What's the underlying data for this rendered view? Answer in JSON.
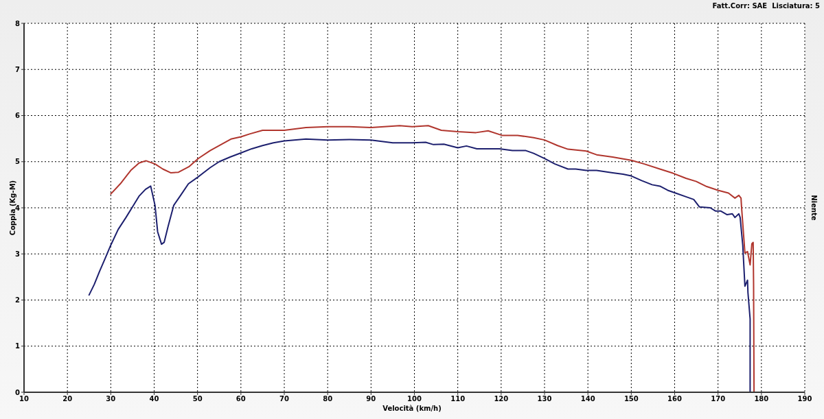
{
  "chart_data": {
    "type": "line",
    "xlabel": "Velocità (km/h)",
    "ylabel": "Coppia (Kg-M)",
    "y2label": "Niente",
    "annotations": [
      "Fatt.Corr: SAE  Lisciatura: 5"
    ],
    "xlim": [
      10,
      190
    ],
    "xticks": [
      10,
      20,
      30,
      40,
      50,
      60,
      70,
      80,
      90,
      100,
      110,
      120,
      130,
      140,
      150,
      160,
      170,
      180,
      190
    ],
    "ylim": [
      0,
      8
    ],
    "yticks": [
      0,
      1,
      2,
      3,
      4,
      5,
      6,
      7,
      8
    ],
    "grid": true,
    "line_style": "solid",
    "series": [
      {
        "color": "#1c1f6e",
        "x": [
          25.0,
          26.2,
          27.4,
          28.7,
          30,
          31.7,
          33.5,
          35,
          36.5,
          38,
          39.2,
          40.2,
          40.8,
          41.7,
          42.3,
          43.2,
          44.5,
          46.1,
          47.9,
          50,
          52.9,
          55,
          57.5,
          60,
          62.5,
          65,
          67.5,
          70,
          75,
          80,
          85,
          90,
          95,
          99.5,
          102.6,
          104.4,
          106.8,
          110,
          112,
          114.4,
          119.6,
          122.6,
          125.7,
          127.5,
          130,
          132.4,
          135.4,
          137.2,
          139.6,
          142,
          145.7,
          148.1,
          150,
          152.4,
          154.8,
          156.6,
          158.4,
          160.2,
          162.6,
          164.4,
          165.7,
          168.2,
          169.4,
          170.6,
          172.1,
          173.3,
          173.9,
          174.8,
          175.1,
          175.7,
          176.2,
          176.8,
          176.9,
          177.4,
          177.4
        ],
        "values": [
          2.11,
          2.34,
          2.62,
          2.9,
          3.19,
          3.53,
          3.79,
          4.02,
          4.25,
          4.4,
          4.47,
          4.05,
          3.48,
          3.21,
          3.25,
          3.59,
          4.05,
          4.27,
          4.52,
          4.66,
          4.87,
          5.0,
          5.1,
          5.19,
          5.28,
          5.35,
          5.41,
          5.45,
          5.49,
          5.47,
          5.48,
          5.47,
          5.41,
          5.41,
          5.42,
          5.37,
          5.38,
          5.3,
          5.34,
          5.28,
          5.28,
          5.24,
          5.24,
          5.18,
          5.07,
          4.95,
          4.84,
          4.84,
          4.81,
          4.81,
          4.76,
          4.73,
          4.69,
          4.59,
          4.5,
          4.47,
          4.38,
          4.32,
          4.24,
          4.18,
          4.02,
          4.0,
          3.93,
          3.93,
          3.85,
          3.87,
          3.79,
          3.87,
          3.79,
          3.19,
          2.3,
          2.43,
          2.16,
          1.59,
          0
        ]
      },
      {
        "color": "#b0352d",
        "x": [
          30,
          32.2,
          34.6,
          36.5,
          38.1,
          40.2,
          42,
          43.8,
          45.6,
          48,
          50.2,
          52.9,
          55.4,
          57.7,
          60,
          62,
          65,
          70,
          75,
          80,
          85,
          90,
          94.8,
          96.6,
          99.5,
          103.2,
          106.2,
          110,
          114.2,
          117,
          120.2,
          123.8,
          127.5,
          130,
          133,
          135.4,
          139.6,
          142,
          145.7,
          150,
          153,
          156.6,
          159.6,
          162.6,
          165,
          167.4,
          170,
          172.4,
          173.9,
          174.8,
          175.3,
          175.4,
          176.2,
          176.8,
          177.4,
          177.8,
          178.1,
          178.2,
          178.3
        ],
        "values": [
          4.3,
          4.52,
          4.81,
          4.97,
          5.02,
          4.95,
          4.84,
          4.76,
          4.77,
          4.89,
          5.07,
          5.24,
          5.37,
          5.49,
          5.54,
          5.6,
          5.68,
          5.68,
          5.74,
          5.76,
          5.76,
          5.74,
          5.77,
          5.78,
          5.76,
          5.78,
          5.68,
          5.65,
          5.63,
          5.67,
          5.57,
          5.57,
          5.52,
          5.47,
          5.35,
          5.27,
          5.23,
          5.15,
          5.1,
          5.03,
          4.95,
          4.84,
          4.75,
          4.64,
          4.57,
          4.46,
          4.38,
          4.32,
          4.21,
          4.27,
          4.21,
          4.05,
          3.02,
          3.05,
          2.76,
          3.22,
          3.25,
          2.34,
          0
        ]
      }
    ]
  }
}
